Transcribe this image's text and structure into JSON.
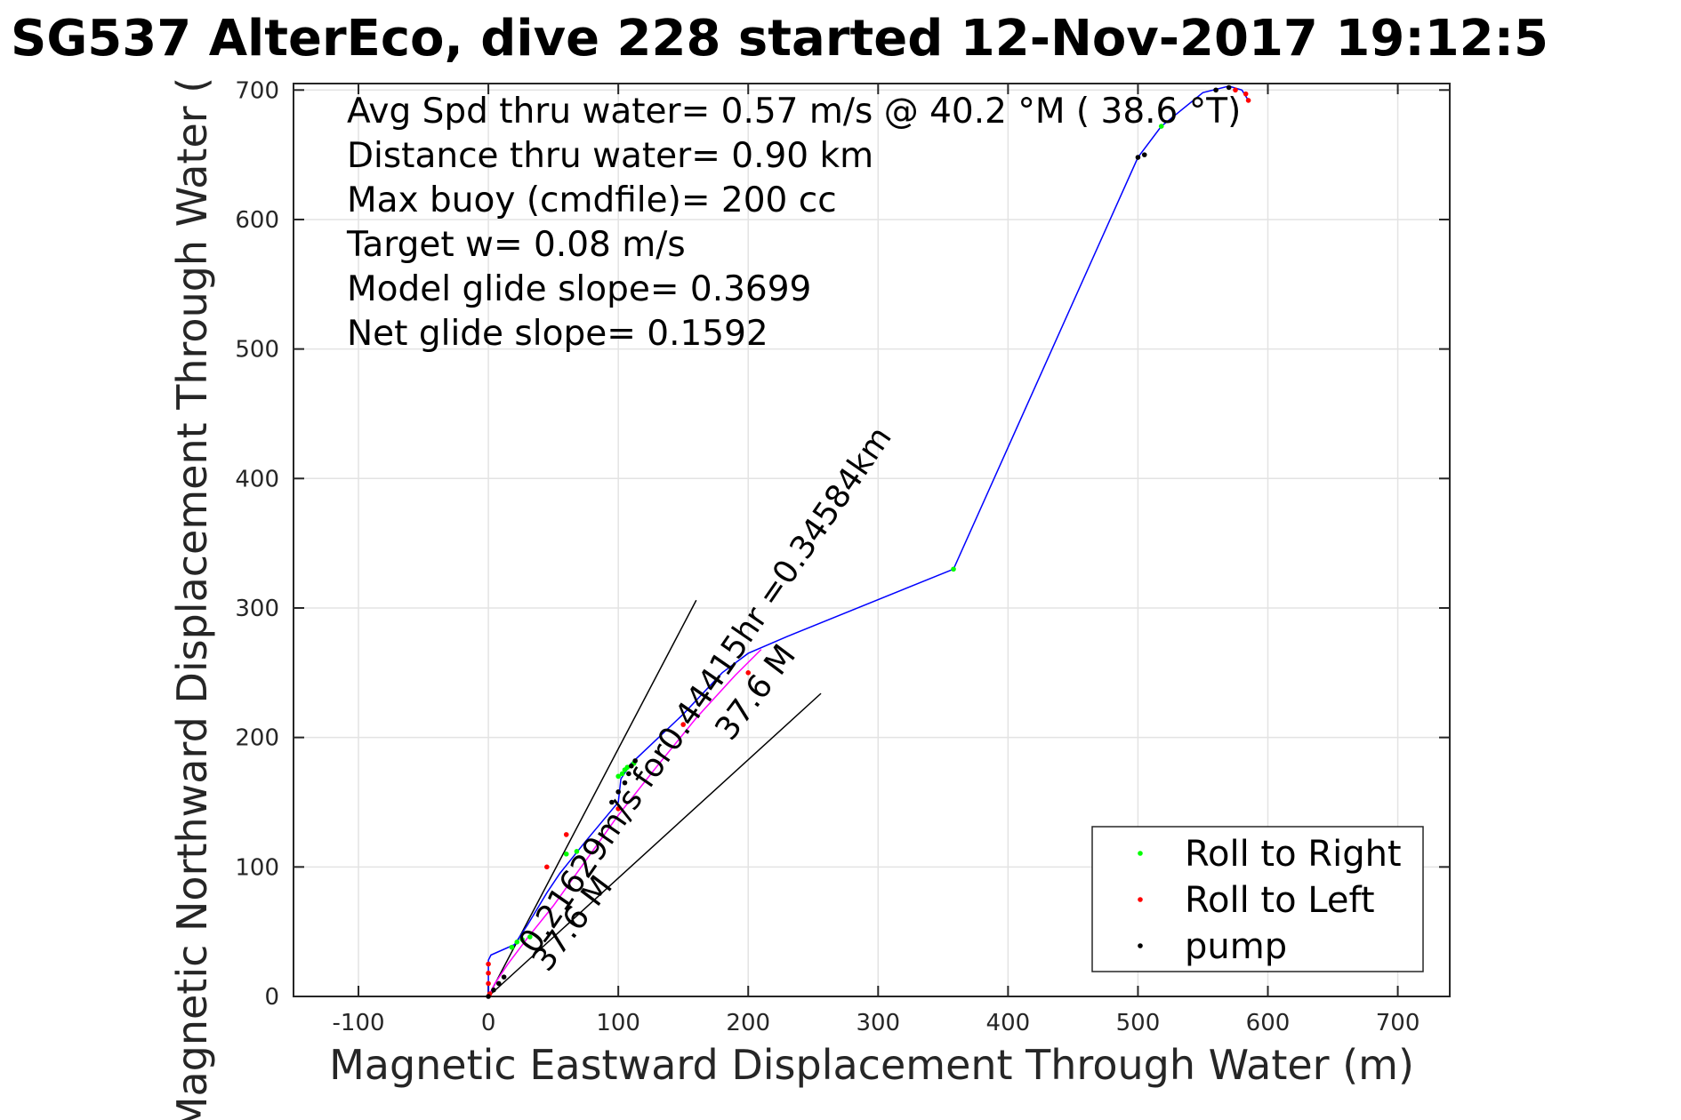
{
  "chart_data": {
    "type": "scatter",
    "title": "SG537 AlterEco, dive 228 started 12-Nov-2017 19:12:5",
    "xlabel": "Magnetic Eastward Displacement Through Water (m)",
    "ylabel": "Magnetic Northward Displacement Through Water (",
    "xlim": [
      -150,
      740
    ],
    "ylim": [
      0,
      705
    ],
    "xticks": [
      -100,
      0,
      100,
      200,
      300,
      400,
      500,
      600,
      700
    ],
    "yticks": [
      0,
      100,
      200,
      300,
      400,
      500,
      600,
      700
    ],
    "grid": true,
    "legend_position": "bottom-right",
    "stats": [
      "Avg Spd thru water=  0.57 m/s @  40.2 °M ( 38.6 °T)",
      "Distance thru water=  0.90 km",
      "Max buoy (cmdfile)= 200 cc",
      "Target w= 0.08 m/s",
      "Model glide slope= 0.3699",
      "Net glide slope= 0.1592"
    ],
    "annotations": [
      "0.21629m/s for0.44415hr =0.34584km",
      "37.6 M",
      "37.6 M"
    ],
    "track": {
      "name": "",
      "color": "#0000ff",
      "x": [
        0,
        0,
        2,
        20,
        30,
        45,
        55,
        75,
        100,
        102,
        110,
        150,
        180,
        200,
        230,
        358,
        500,
        518,
        550,
        570,
        580,
        585
      ],
      "y": [
        0,
        28,
        32,
        40,
        55,
        80,
        95,
        120,
        150,
        168,
        180,
        218,
        250,
        265,
        278,
        330,
        648,
        672,
        698,
        703,
        700,
        692
      ]
    },
    "track_secondary": {
      "name": "",
      "color": "#ff00ff",
      "x": [
        0,
        5,
        15,
        30,
        50,
        75,
        100,
        130,
        160,
        190,
        210
      ],
      "y": [
        0,
        10,
        25,
        45,
        70,
        105,
        140,
        178,
        215,
        248,
        268
      ]
    },
    "guide_lines": [
      {
        "x": [
          0,
          160
        ],
        "y": [
          0,
          306
        ]
      },
      {
        "x": [
          0,
          256
        ],
        "y": [
          0,
          234
        ]
      }
    ],
    "series": [
      {
        "name": "Roll to Right",
        "color": "#00ff00",
        "x": [
          18,
          22,
          26,
          32,
          60,
          68,
          100,
          103,
          105,
          107,
          110,
          112,
          358,
          518
        ],
        "y": [
          38,
          42,
          44,
          46,
          110,
          112,
          170,
          172,
          175,
          177,
          178,
          180,
          330,
          672
        ]
      },
      {
        "name": "Roll to Left",
        "color": "#ff0000",
        "x": [
          0,
          0,
          0,
          1,
          45,
          60,
          100,
          150,
          200,
          575,
          583,
          585
        ],
        "y": [
          25,
          18,
          10,
          2,
          100,
          125,
          145,
          210,
          250,
          700,
          697,
          692
        ]
      },
      {
        "name": "pump",
        "color": "#000000",
        "x": [
          0,
          4,
          8,
          12,
          95,
          100,
          105,
          108,
          110,
          113,
          500,
          505,
          560,
          570
        ],
        "y": [
          0,
          5,
          10,
          15,
          150,
          158,
          165,
          172,
          178,
          182,
          648,
          650,
          700,
          702
        ]
      }
    ]
  }
}
